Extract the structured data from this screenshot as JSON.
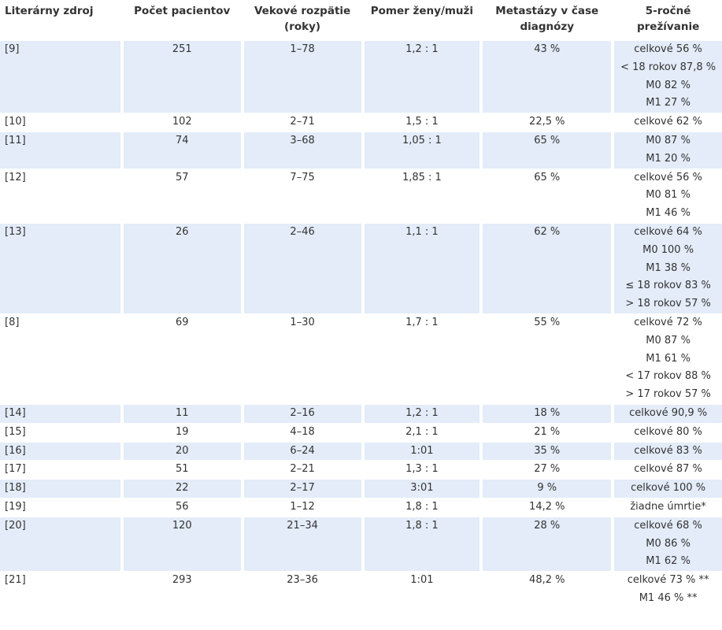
{
  "table": {
    "headers": [
      "Literárny zdroj",
      "Počet pacientov",
      "Vekové rozpätie (roky)",
      "Pomer ženy/muži",
      "Metastázy v čase diagnózy",
      "5-ročné prežívanie"
    ],
    "rows": [
      {
        "source": "[9]",
        "patients": "251",
        "age_range": "1–78",
        "ratio": "1,2 : 1",
        "metastases": "43 %",
        "survival": [
          "celkové 56 %",
          "< 18 rokov 87,8 %",
          "M0 82 %",
          "M1 27 %"
        ],
        "shaded": true
      },
      {
        "source": "[10]",
        "patients": "102",
        "age_range": "2–71",
        "ratio": "1,5 : 1",
        "metastases": "22,5 %",
        "survival": [
          "celkové 62 %"
        ],
        "shaded": false
      },
      {
        "source": "[11]",
        "patients": "74",
        "age_range": "3–68",
        "ratio": "1,05 : 1",
        "metastases": "65 %",
        "survival": [
          "M0 87 %",
          "M1 20 %"
        ],
        "shaded": true
      },
      {
        "source": "[12]",
        "patients": "57",
        "age_range": "7–75",
        "ratio": "1,85 : 1",
        "metastases": "65 %",
        "survival": [
          "celkové 56 %",
          "M0 81 %",
          "M1 46 %"
        ],
        "shaded": false
      },
      {
        "source": "[13]",
        "patients": "26",
        "age_range": "2–46",
        "ratio": "1,1 : 1",
        "metastases": "62 %",
        "survival": [
          "celkové 64 %",
          "M0 100 %",
          "M1 38 %",
          "≤ 18 rokov 83 %",
          "> 18 rokov 57 %"
        ],
        "shaded": true
      },
      {
        "source": "[8]",
        "patients": "69",
        "age_range": "1–30",
        "ratio": "1,7 : 1",
        "metastases": "55 %",
        "survival": [
          "celkové 72 %",
          "M0 87 %",
          "M1 61 %",
          "< 17 rokov 88 %",
          "> 17 rokov 57 %"
        ],
        "shaded": false
      },
      {
        "source": "[14]",
        "patients": "11",
        "age_range": "2–16",
        "ratio": "1,2 : 1",
        "metastases": "18 %",
        "survival": [
          "celkové 90,9 %"
        ],
        "shaded": true
      },
      {
        "source": "[15]",
        "patients": "19",
        "age_range": "4–18",
        "ratio": "2,1 : 1",
        "metastases": "21 %",
        "survival": [
          "celkové 80 %"
        ],
        "shaded": false
      },
      {
        "source": "[16]",
        "patients": "20",
        "age_range": "6–24",
        "ratio": "1:01",
        "metastases": "35 %",
        "survival": [
          "celkové 83 %"
        ],
        "shaded": true
      },
      {
        "source": "[17]",
        "patients": "51",
        "age_range": "2–21",
        "ratio": "1,3 : 1",
        "metastases": "27 %",
        "survival": [
          "celkové 87 %"
        ],
        "shaded": false
      },
      {
        "source": "[18]",
        "patients": "22",
        "age_range": "2–17",
        "ratio": "3:01",
        "metastases": "9 %",
        "survival": [
          "celkové 100 %"
        ],
        "shaded": true
      },
      {
        "source": "[19]",
        "patients": "56",
        "age_range": "1–12",
        "ratio": "1,8 : 1",
        "metastases": "14,2 %",
        "survival": [
          "žiadne úmrtie*"
        ],
        "shaded": false
      },
      {
        "source": "[20]",
        "patients": "120",
        "age_range": "21–34",
        "ratio": "1,8 : 1",
        "metastases": "28 %",
        "survival": [
          "celkové 68 %",
          "M0 86 %",
          "M1 62 %"
        ],
        "shaded": true
      },
      {
        "source": "[21]",
        "patients": "293",
        "age_range": "23–36",
        "ratio": "1:01",
        "metastases": "48,2 %",
        "survival": [
          "celkové 73 % **",
          "M1 46 % **"
        ],
        "shaded": false
      }
    ]
  }
}
